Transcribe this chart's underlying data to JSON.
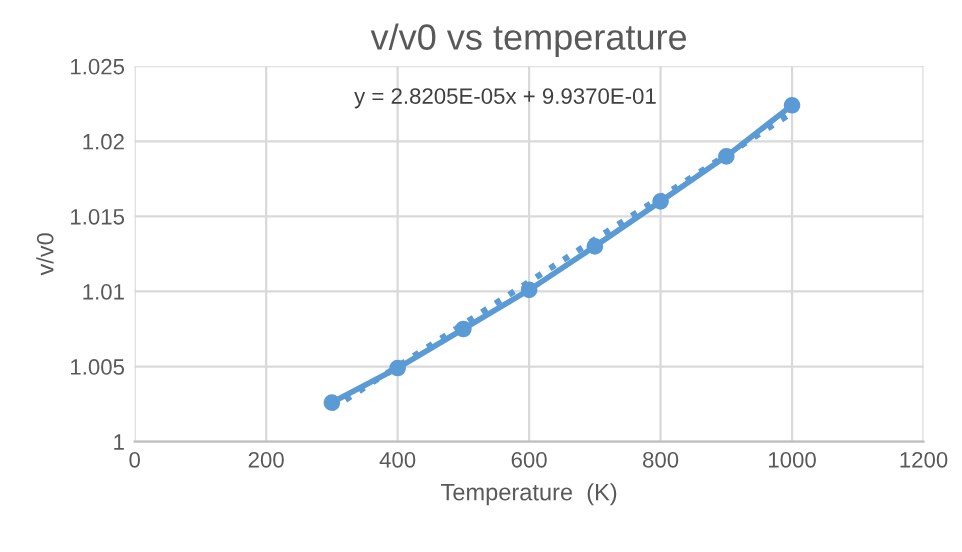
{
  "chart_data": {
    "type": "line",
    "title": "v/v0 vs temperature",
    "xlabel": "Temperature  (K)",
    "ylabel": "v/v0",
    "x": [
      300,
      400,
      500,
      600,
      700,
      800,
      900,
      1000
    ],
    "series": [
      {
        "color": "#5b9bd5",
        "marker": "circle",
        "line_style": "solid",
        "values": [
          1.0026,
          1.0049,
          1.0075,
          1.0101,
          1.013,
          1.016,
          1.019,
          1.0224
        ]
      },
      {
        "type": "line",
        "color": "#5b9bd5",
        "marker": "none",
        "line_style": "dotted",
        "x": [
          300,
          1000
        ],
        "values": [
          1.0022,
          1.0219
        ]
      }
    ],
    "annotations": [
      "y = 2.8205E-05x + 9.9370E-01"
    ],
    "xlim": [
      0,
      1200
    ],
    "xticks": [
      0,
      200,
      400,
      600,
      800,
      1000,
      1200
    ],
    "ylim": [
      1,
      1.025
    ],
    "yticks": [
      1,
      1.005,
      1.01,
      1.015,
      1.02,
      1.025
    ],
    "grid": true,
    "legend": false
  }
}
